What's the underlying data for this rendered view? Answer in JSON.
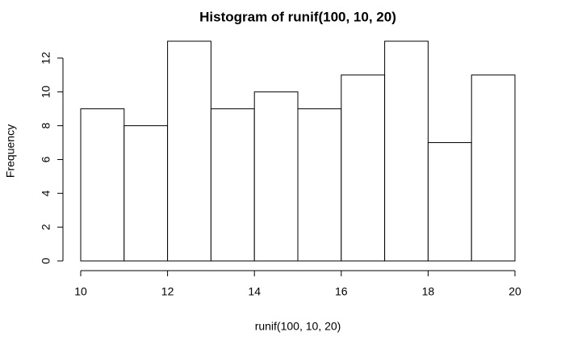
{
  "chart_data": {
    "type": "histogram",
    "title": "Histogram of runif(100, 10, 20)",
    "x_label": "runif(100, 10, 20)",
    "y_label": "Frequency",
    "bins": [
      10,
      11,
      12,
      13,
      14,
      15,
      16,
      17,
      18,
      19,
      20
    ],
    "values": [
      9,
      8,
      13,
      9,
      10,
      9,
      11,
      13,
      7,
      11
    ],
    "color": "#ffffff",
    "xlim": [
      10,
      20
    ],
    "xticks": [
      10,
      12,
      14,
      16,
      18,
      20
    ],
    "ylim": [
      0,
      13
    ],
    "yticks": [
      0,
      2,
      4,
      6,
      8,
      10,
      12
    ]
  }
}
